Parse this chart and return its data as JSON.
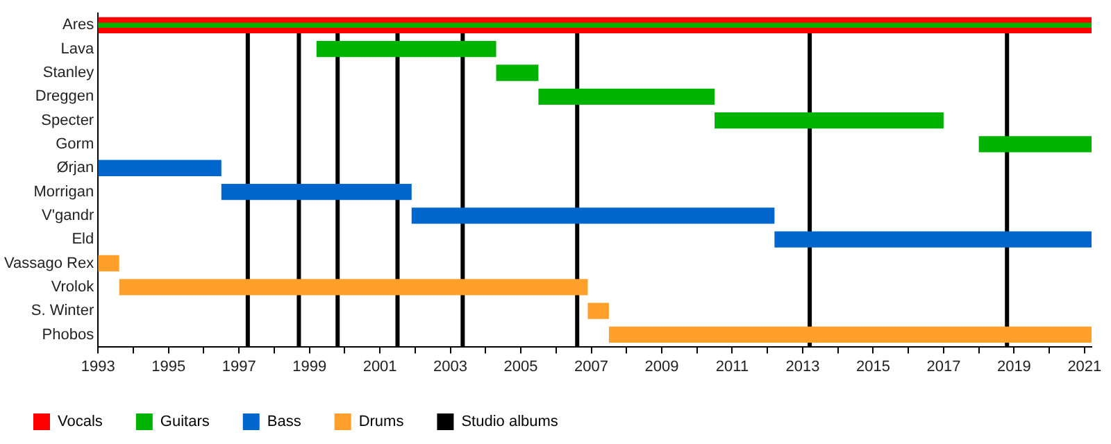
{
  "chart_data": {
    "type": "bar",
    "orientation": "horizontal",
    "legend": "bottom",
    "grid": false,
    "categories": [
      "Ares",
      "Lava",
      "Stanley",
      "Dreggen",
      "Specter",
      "Gorm",
      "Ørjan",
      "Morrigan",
      "V'gandr",
      "Eld",
      "Vassago Rex",
      "Vrolok",
      "S. Winter",
      "Phobos"
    ],
    "series": [
      {
        "name": "Vocals",
        "color": "#ff0000",
        "base": [
          1993,
          null,
          null,
          null,
          null,
          null,
          null,
          null,
          null,
          null,
          null,
          null,
          null,
          null
        ],
        "values": [
          28.2,
          null,
          null,
          null,
          null,
          null,
          null,
          null,
          null,
          null,
          null,
          null,
          null,
          null
        ]
      },
      {
        "name": "Guitars",
        "color": "#00b300",
        "base": [
          1993,
          1999.2,
          2004.3,
          2005.5,
          2010.5,
          2018,
          null,
          null,
          null,
          null,
          null,
          null,
          null,
          null
        ],
        "values": [
          28.2,
          5.1,
          1.2,
          5,
          6.5,
          3.2,
          null,
          null,
          null,
          null,
          null,
          null,
          null,
          null
        ]
      },
      {
        "name": "Bass",
        "color": "#0066cc",
        "base": [
          null,
          null,
          null,
          null,
          null,
          null,
          1993,
          1996.5,
          2001.9,
          2012.2,
          null,
          null,
          null,
          null
        ],
        "values": [
          null,
          null,
          null,
          null,
          null,
          null,
          3.5,
          5.4,
          10.3,
          9,
          null,
          null,
          null,
          null
        ]
      },
      {
        "name": "Drums",
        "color": "#ffa02a",
        "base": [
          null,
          null,
          null,
          null,
          null,
          null,
          null,
          null,
          null,
          null,
          1993,
          1993.6,
          2006.9,
          2007.5
        ],
        "values": [
          null,
          null,
          null,
          null,
          null,
          null,
          null,
          null,
          null,
          null,
          0.6,
          13.3,
          0.6,
          13.7
        ]
      }
    ],
    "ref_lines": [
      {
        "axis": "x",
        "value": 1997.25,
        "label": "Studio albums",
        "color": "#000000"
      },
      {
        "axis": "x",
        "value": 1998.7,
        "label": null,
        "color": "#000000"
      },
      {
        "axis": "x",
        "value": 1999.8,
        "label": null,
        "color": "#000000"
      },
      {
        "axis": "x",
        "value": 2001.5,
        "label": null,
        "color": "#000000"
      },
      {
        "axis": "x",
        "value": 2003.35,
        "label": null,
        "color": "#000000"
      },
      {
        "axis": "x",
        "value": 2006.6,
        "label": null,
        "color": "#000000"
      },
      {
        "axis": "x",
        "value": 2013.2,
        "label": null,
        "color": "#000000"
      },
      {
        "axis": "x",
        "value": 2018.8,
        "label": null,
        "color": "#000000"
      }
    ],
    "xlim": [
      1993,
      2021.2
    ],
    "xticks": [
      1993,
      {
        "value": 1994,
        "label": null
      },
      1995,
      {
        "value": 1996,
        "label": null
      },
      1997,
      {
        "value": 1998,
        "label": null
      },
      1999,
      {
        "value": 2000,
        "label": null
      },
      2001,
      {
        "value": 2002,
        "label": null
      },
      2003,
      {
        "value": 2004,
        "label": null
      },
      2005,
      {
        "value": 2006,
        "label": null
      },
      2007,
      {
        "value": 2008,
        "label": null
      },
      2009,
      {
        "value": 2010,
        "label": null
      },
      2011,
      {
        "value": 2012,
        "label": null
      },
      2013,
      {
        "value": 2014,
        "label": null
      },
      2015,
      {
        "value": 2016,
        "label": null
      },
      2017,
      {
        "value": 2018,
        "label": null
      },
      2019,
      {
        "value": 2020,
        "label": null
      },
      2021
    ]
  }
}
